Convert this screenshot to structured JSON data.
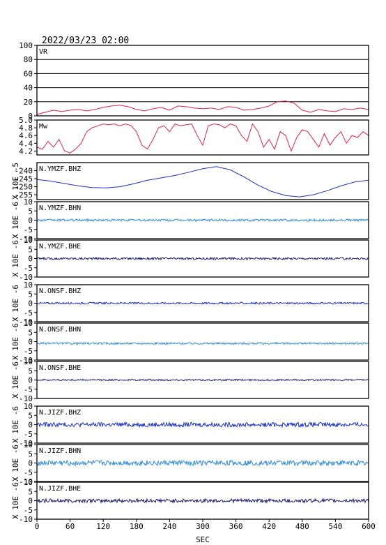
{
  "header": {
    "datetime": "2022/03/23 02:00"
  },
  "chart_data": {
    "type": "line",
    "x_label": "SEC",
    "x_ticks": [
      "0",
      "60",
      "120",
      "180",
      "240",
      "300",
      "360",
      "420",
      "480",
      "540",
      "600"
    ],
    "xlim": [
      0,
      600
    ],
    "panels": [
      {
        "label": "VR",
        "color": "#e0204a",
        "ylim": [
          0,
          100
        ],
        "y_ticks": [
          "100",
          "80",
          "60",
          "40",
          "20",
          "0"
        ],
        "grid": true,
        "x": [
          0,
          15,
          30,
          45,
          60,
          75,
          90,
          105,
          120,
          135,
          150,
          165,
          180,
          195,
          210,
          225,
          240,
          255,
          270,
          285,
          300,
          315,
          330,
          345,
          360,
          375,
          390,
          405,
          420,
          435,
          450,
          465,
          480,
          495,
          510,
          525,
          540,
          555,
          570,
          585,
          600
        ],
        "y": [
          2,
          5,
          8,
          6,
          8,
          9,
          7,
          9,
          12,
          14,
          15,
          13,
          9,
          7,
          10,
          12,
          8,
          14,
          13,
          11,
          10,
          11,
          9,
          13,
          12,
          8,
          9,
          11,
          14,
          20,
          21,
          18,
          8,
          5,
          9,
          7,
          6,
          10,
          9,
          11,
          9
        ]
      },
      {
        "label": "Mw",
        "color": "#e0204a",
        "ylim": [
          4.1,
          5.0
        ],
        "y_ticks": [
          "5.0",
          "4.8",
          "4.6",
          "4.4",
          "4.2"
        ],
        "grid": false,
        "x": [
          0,
          10,
          20,
          30,
          40,
          50,
          60,
          70,
          80,
          90,
          100,
          110,
          120,
          130,
          140,
          150,
          160,
          170,
          180,
          190,
          200,
          210,
          220,
          230,
          240,
          250,
          260,
          270,
          280,
          290,
          300,
          310,
          320,
          330,
          340,
          350,
          360,
          370,
          380,
          390,
          400,
          410,
          420,
          430,
          440,
          450,
          460,
          470,
          480,
          490,
          500,
          510,
          520,
          530,
          540,
          550,
          560,
          570,
          580,
          590,
          600
        ],
        "y": [
          4.3,
          4.25,
          4.45,
          4.3,
          4.5,
          4.2,
          4.15,
          4.25,
          4.4,
          4.7,
          4.8,
          4.85,
          4.9,
          4.88,
          4.9,
          4.85,
          4.9,
          4.86,
          4.7,
          4.35,
          4.25,
          4.5,
          4.8,
          4.85,
          4.7,
          4.9,
          4.85,
          4.88,
          4.9,
          4.6,
          4.35,
          4.85,
          4.9,
          4.88,
          4.8,
          4.9,
          4.85,
          4.6,
          4.45,
          4.9,
          4.7,
          4.3,
          4.5,
          4.25,
          4.7,
          4.6,
          4.2,
          4.55,
          4.75,
          4.7,
          4.5,
          4.3,
          4.65,
          4.35,
          4.55,
          4.7,
          4.4,
          4.6,
          4.55,
          4.7,
          4.6
        ]
      },
      {
        "label": "N.YMZF.BHZ",
        "color": "#1a2fc4",
        "ylim": [
          -258,
          -235
        ],
        "y_ticks": [
          "-240",
          "-245",
          "-250",
          "-255"
        ],
        "axis_label": "X 10E -5",
        "grid": false,
        "x": [
          0,
          25,
          50,
          75,
          100,
          125,
          150,
          175,
          200,
          225,
          250,
          275,
          300,
          325,
          350,
          375,
          400,
          425,
          450,
          475,
          500,
          525,
          550,
          575,
          600
        ],
        "y": [
          -245.5,
          -246.5,
          -248.0,
          -249.5,
          -250.5,
          -250.7,
          -250.0,
          -248.2,
          -246.0,
          -244.5,
          -243.0,
          -241.0,
          -238.8,
          -237.5,
          -239.5,
          -244.0,
          -249.0,
          -253.0,
          -255.5,
          -256.3,
          -255.0,
          -252.5,
          -249.5,
          -247.0,
          -246.0
        ]
      },
      {
        "label": "N.YMZF.BHN",
        "color": "#2b8ae0",
        "ylim": [
          -10,
          10
        ],
        "y_ticks": [
          "10",
          "5",
          "0",
          "-5",
          "-10"
        ],
        "axis_label": "X 10E -6",
        "grid": false,
        "noise": {
          "mean": 0,
          "amplitude": 0.6
        }
      },
      {
        "label": "N.YMZF.BHE",
        "color": "#1a1a6e",
        "ylim": [
          -10,
          10
        ],
        "y_ticks": [
          "10",
          "5",
          "0",
          "-5",
          "-10"
        ],
        "axis_label": "X 10E -6",
        "grid": false,
        "noise": {
          "mean": 0,
          "amplitude": 0.6
        }
      },
      {
        "label": "N.ONSF.BHZ",
        "color": "#1a2fc4",
        "ylim": [
          -10,
          10
        ],
        "y_ticks": [
          "10",
          "5",
          "0",
          "-5",
          "-10"
        ],
        "axis_label": "X 10E -6",
        "grid": false,
        "noise": {
          "mean": 0,
          "amplitude": 0.5
        }
      },
      {
        "label": "N.ONSF.BHN",
        "color": "#2b8ae0",
        "ylim": [
          -10,
          10
        ],
        "y_ticks": [
          "10",
          "5",
          "0",
          "-5",
          "-10"
        ],
        "axis_label": "X 10E -6",
        "grid": false,
        "noise": {
          "mean": -1,
          "amplitude": 0.5
        }
      },
      {
        "label": "N.ONSF.BHE",
        "color": "#1a1a6e",
        "ylim": [
          -10,
          10
        ],
        "y_ticks": [
          "10",
          "5",
          "0",
          "-5",
          "-10"
        ],
        "axis_label": "X 10E -6",
        "grid": false,
        "noise": {
          "mean": 0,
          "amplitude": 0.4
        }
      },
      {
        "label": "N.JIZF.BHZ",
        "color": "#1a2fc4",
        "ylim": [
          -10,
          10
        ],
        "y_ticks": [
          "10",
          "5",
          "0",
          "-5",
          "-10"
        ],
        "axis_label": "X 10E -6",
        "grid": false,
        "noise": {
          "mean": 0,
          "amplitude": 1.2
        }
      },
      {
        "label": "N.JIZF.BHN",
        "color": "#2b8ae0",
        "ylim": [
          -10,
          10
        ],
        "y_ticks": [
          "10",
          "5",
          "0",
          "-5",
          "-10"
        ],
        "axis_label": "X 10E -6",
        "grid": false,
        "noise": {
          "mean": 0,
          "amplitude": 1.4
        }
      },
      {
        "label": "N.JIZF.BHE",
        "color": "#1a1a6e",
        "ylim": [
          -10,
          10
        ],
        "y_ticks": [
          "10",
          "5",
          "0",
          "-5",
          "-10"
        ],
        "axis_label": "X 10E -6",
        "grid": false,
        "noise": {
          "mean": 0,
          "amplitude": 1.0
        }
      }
    ]
  }
}
